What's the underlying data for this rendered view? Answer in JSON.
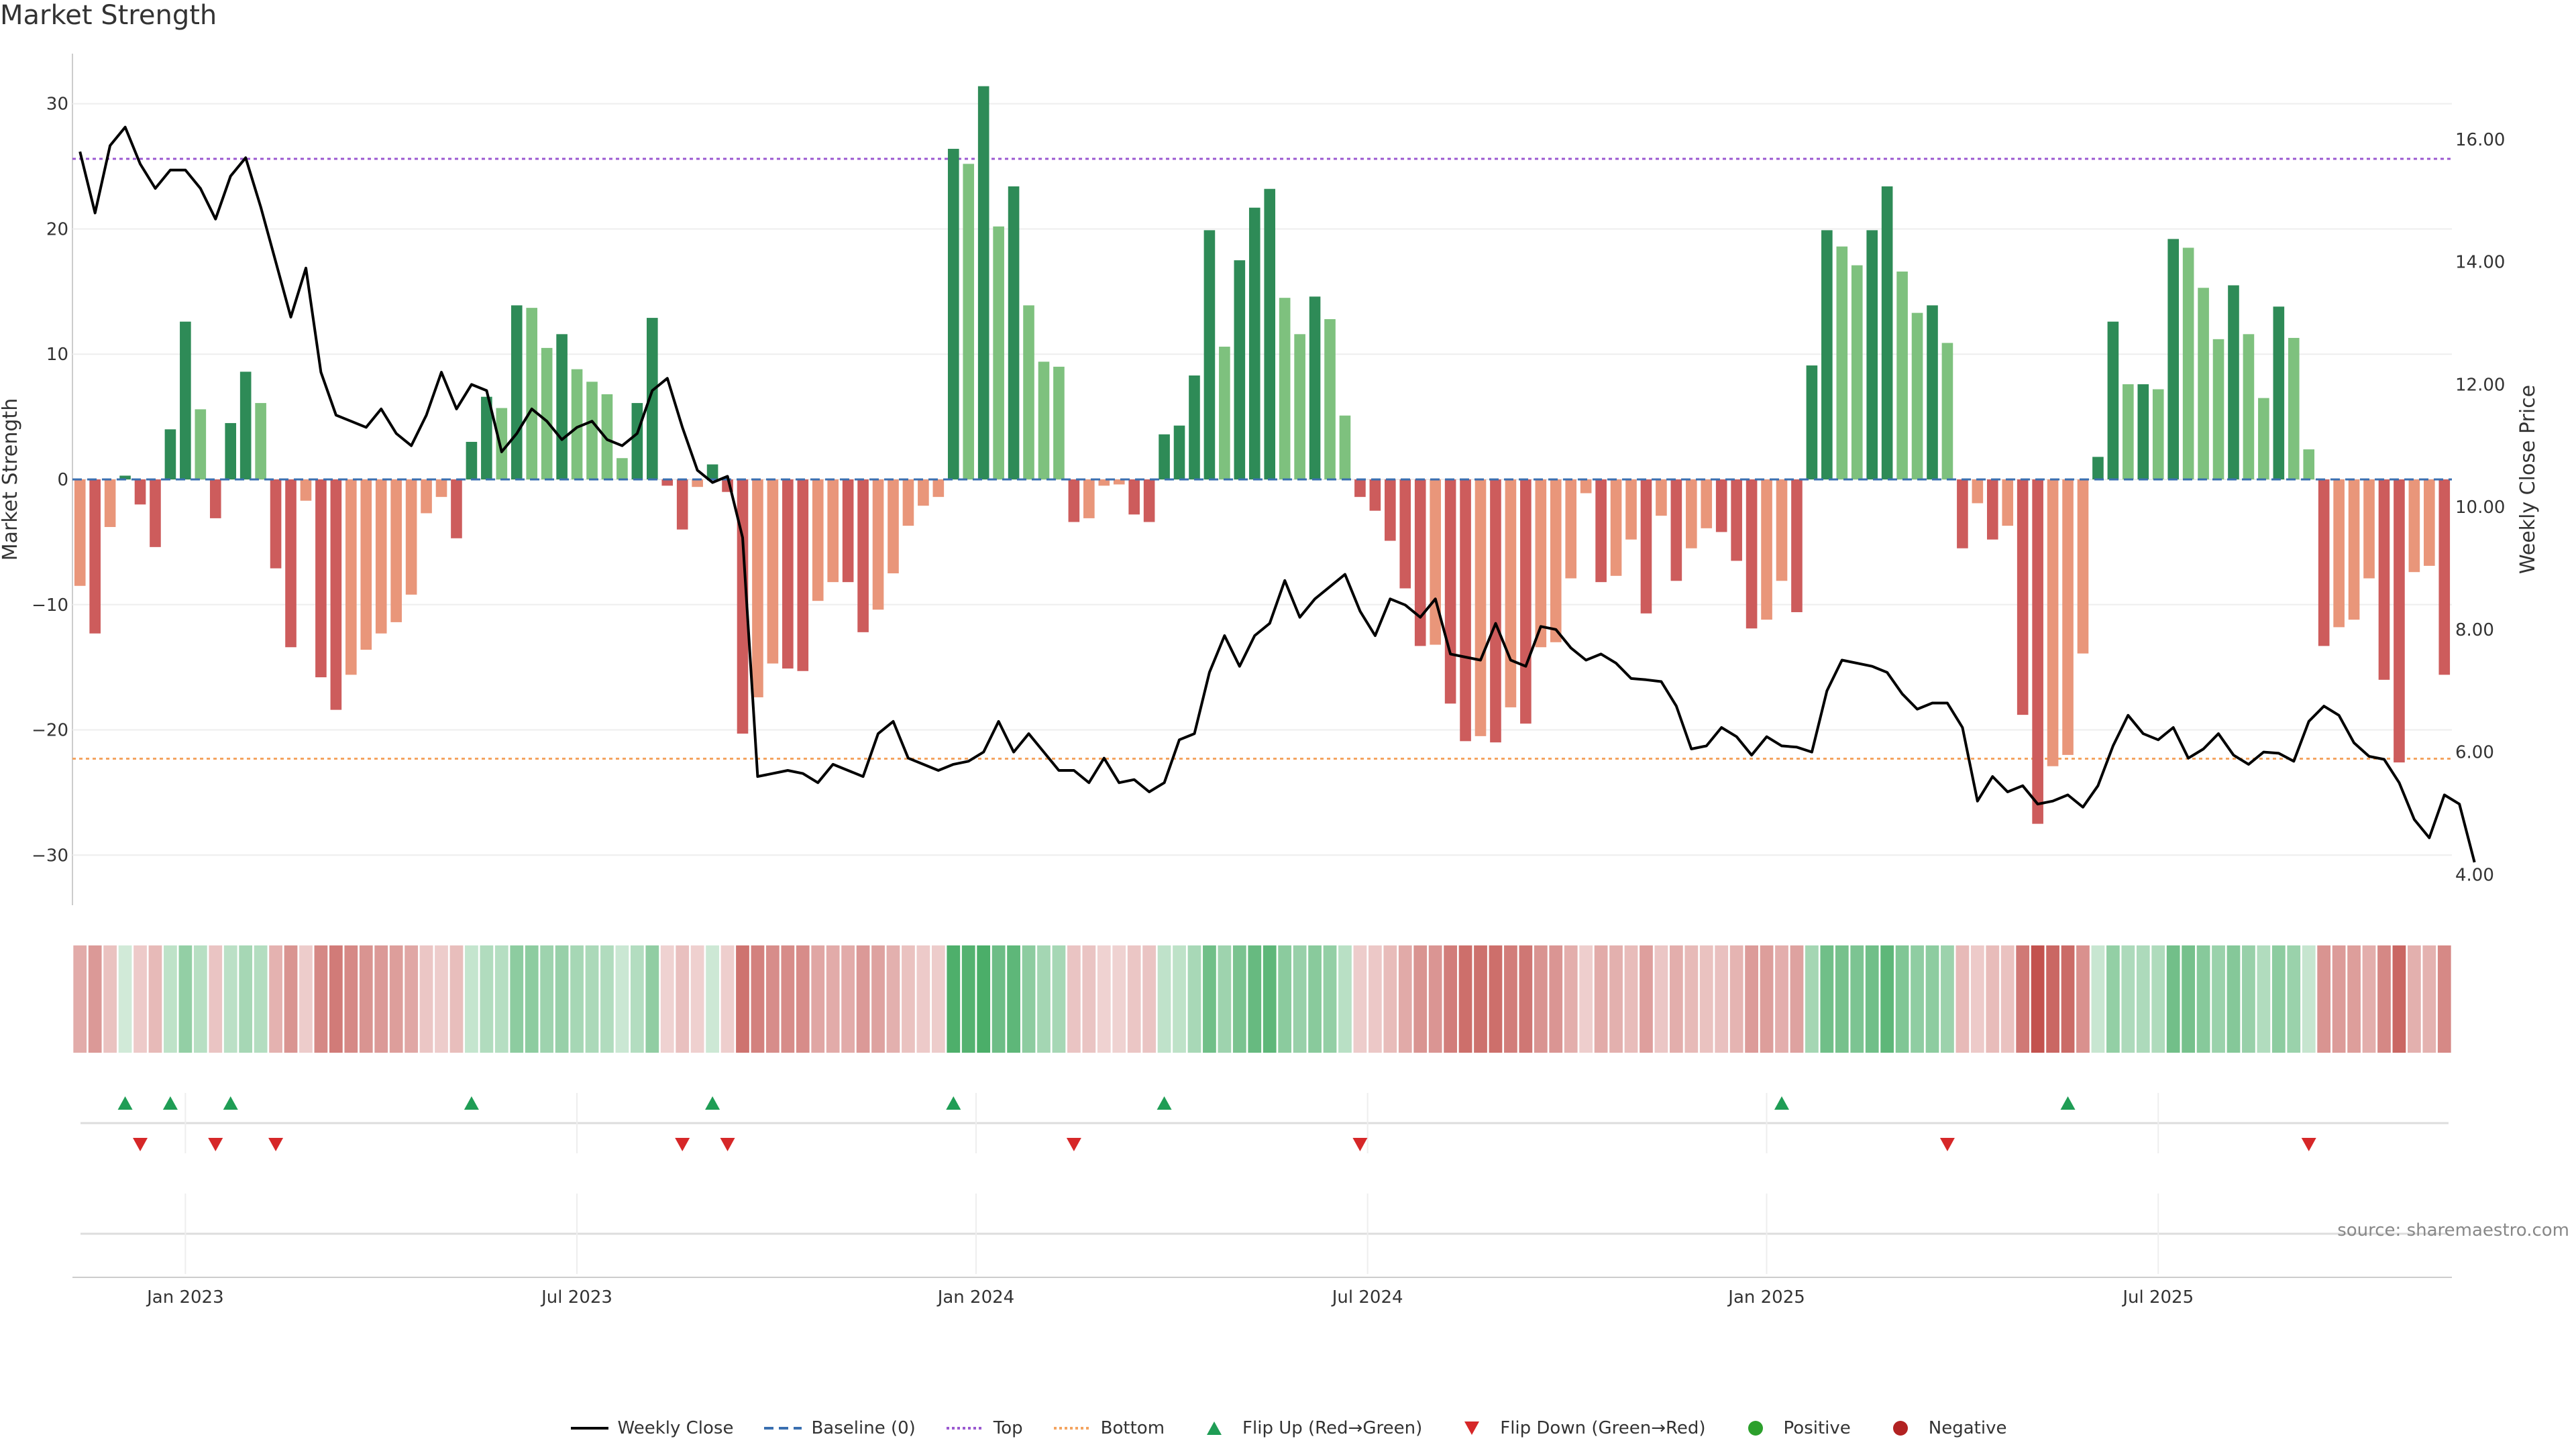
{
  "title": "Market Strength",
  "source": "source: sharemaestro.com",
  "colors": {
    "strong_green": "#2e8b57",
    "light_green": "#7ec17e",
    "strong_red": "#cd5c5c",
    "light_red": "#e9967a",
    "line": "#000000",
    "top": "#9b59d0",
    "bottom": "#f4a460",
    "baseline": "#3a6fb0",
    "flip_up": "#1f9d55",
    "flip_down": "#d62728",
    "positive": "#2ca02c",
    "negative": "#b22222"
  },
  "legend": [
    {
      "key": "line",
      "label": "Weekly Close",
      "icon": "solid-line"
    },
    {
      "key": "baseline",
      "label": "Baseline (0)",
      "icon": "dashed-line"
    },
    {
      "key": "top",
      "label": "Top",
      "icon": "dotted-line"
    },
    {
      "key": "bottom",
      "label": "Bottom",
      "icon": "dotted-line"
    },
    {
      "key": "flip_up",
      "label": "Flip Up (Red→Green)",
      "icon": "triangle-up"
    },
    {
      "key": "flip_down",
      "label": "Flip Down (Green→Red)",
      "icon": "triangle-down"
    },
    {
      "key": "positive",
      "label": "Positive",
      "icon": "circle"
    },
    {
      "key": "negative",
      "label": "Negative",
      "icon": "circle"
    }
  ],
  "chart_data": {
    "type": "bar",
    "title": "Market Strength",
    "ylabel": "Market Strength",
    "y2label": "Weekly Close Price",
    "ylim": [
      -34,
      34
    ],
    "y2lim": [
      3.5,
      17.4
    ],
    "yticks": [
      -30,
      -20,
      -10,
      0,
      10,
      20,
      30
    ],
    "y2ticks": [
      "4.00",
      "6.00",
      "8.00",
      "10.00",
      "12.00",
      "14.00",
      "16.00"
    ],
    "xticks": [
      {
        "label": "Jan 2023",
        "week": 7
      },
      {
        "label": "Jul 2023",
        "week": 33
      },
      {
        "label": "Jan 2024",
        "week": 59.5
      },
      {
        "label": "Jul 2024",
        "week": 85.5
      },
      {
        "label": "Jan 2025",
        "week": 112
      },
      {
        "label": "Jul 2025",
        "week": 138
      }
    ],
    "top_line": 25.6,
    "bottom_line": -22.3,
    "baseline": 0,
    "strength": [
      -8.5,
      -12.3,
      -3.8,
      0.3,
      -2,
      -5.4,
      4,
      12.6,
      5.6,
      -3.1,
      4.5,
      8.6,
      6.1,
      -7.1,
      -13.4,
      -1.7,
      -15.8,
      -18.4,
      -15.6,
      -13.6,
      -12.3,
      -11.4,
      -9.2,
      -2.7,
      -1.4,
      -4.7,
      3,
      6.6,
      5.7,
      13.9,
      13.7,
      10.5,
      11.6,
      8.8,
      7.8,
      6.8,
      1.7,
      6.1,
      12.9,
      -0.5,
      -4,
      -0.6,
      1.2,
      -1,
      -20.3,
      -17.4,
      -14.7,
      -15.1,
      -15.3,
      -9.7,
      -8.2,
      -8.2,
      -12.2,
      -10.4,
      -7.5,
      -3.7,
      -2.1,
      -1.4,
      26.4,
      25.2,
      31.4,
      20.2,
      23.4,
      13.9,
      9.4,
      9,
      -3.4,
      -3.1,
      -0.5,
      -0.4,
      -2.8,
      -3.4,
      3.6,
      4.3,
      8.3,
      19.9,
      10.6,
      17.5,
      21.7,
      23.2,
      14.5,
      11.6,
      14.6,
      12.8,
      5.1,
      -1.4,
      -2.5,
      -4.9,
      -8.7,
      -13.3,
      -13.2,
      -17.9,
      -20.9,
      -20.5,
      -21,
      -18.2,
      -19.5,
      -13.4,
      -13,
      -7.9,
      -1.1,
      -8.2,
      -7.7,
      -4.8,
      -10.7,
      -2.9,
      -8.1,
      -5.5,
      -3.9,
      -4.2,
      -6.5,
      -11.9,
      -11.2,
      -8.1,
      -10.6,
      9.1,
      19.9,
      18.6,
      17.1,
      19.9,
      23.4,
      16.6,
      13.3,
      13.9,
      10.9,
      -5.5,
      -1.9,
      -4.8,
      -3.7,
      -18.8,
      -27.5,
      -22.9,
      -22,
      -13.9,
      1.8,
      12.6,
      7.6,
      7.6,
      7.2,
      19.2,
      18.5,
      15.3,
      11.2,
      15.5,
      11.6,
      6.5,
      13.8,
      11.3,
      2.4,
      -13.3,
      -11.8,
      -11.2,
      -7.9,
      -16,
      -22.6,
      -7.4,
      -6.9,
      -15.6
    ],
    "close": [
      15.8,
      14.8,
      15.9,
      16.2,
      15.6,
      15.2,
      15.5,
      15.5,
      15.2,
      14.7,
      15.4,
      15.7,
      14.9,
      14,
      13.1,
      13.9,
      12.2,
      11.5,
      11.4,
      11.3,
      11.6,
      11.2,
      11,
      11.5,
      12.2,
      11.6,
      12,
      11.9,
      10.9,
      11.2,
      11.6,
      11.4,
      11.1,
      11.3,
      11.4,
      11.1,
      11,
      11.2,
      11.9,
      12.1,
      11.3,
      10.6,
      10.4,
      10.5,
      9.5,
      5.6,
      5.65,
      5.7,
      5.65,
      5.5,
      5.8,
      5.7,
      5.6,
      6.3,
      6.5,
      5.9,
      5.8,
      5.7,
      5.8,
      5.85,
      6,
      6.5,
      6,
      6.3,
      6,
      5.7,
      5.7,
      5.5,
      5.9,
      5.5,
      5.55,
      5.35,
      5.5,
      6.2,
      6.3,
      7.3,
      7.9,
      7.4,
      7.9,
      8.1,
      8.8,
      8.2,
      8.5,
      8.7,
      8.9,
      8.3,
      7.9,
      8.5,
      8.4,
      8.2,
      8.5,
      7.6,
      7.55,
      7.5,
      8.1,
      7.5,
      7.4,
      8.05,
      8,
      7.7,
      7.5,
      7.6,
      7.45,
      7.2,
      7.18,
      7.15,
      6.75,
      6.05,
      6.1,
      6.4,
      6.25,
      5.95,
      6.25,
      6.1,
      6.08,
      6.0,
      7.0,
      7.5,
      7.45,
      7.4,
      7.3,
      6.95,
      6.7,
      6.8,
      6.8,
      6.4,
      5.2,
      5.6,
      5.35,
      5.45,
      5.15,
      5.2,
      5.3,
      5.1,
      5.45,
      6.1,
      6.6,
      6.3,
      6.2,
      6.4,
      5.9,
      6.05,
      6.3,
      5.95,
      5.8,
      6.0,
      5.98,
      5.85,
      6.5,
      6.75,
      6.6,
      6.15,
      5.93,
      5.88,
      5.5,
      4.9,
      4.6,
      5.3,
      5.15,
      4.2
    ],
    "flip_up_weeks": [
      3,
      6,
      10,
      26,
      42,
      58,
      72,
      113,
      132
    ],
    "flip_down_weeks": [
      4,
      9,
      13,
      40,
      43,
      66,
      85,
      124,
      148
    ]
  }
}
